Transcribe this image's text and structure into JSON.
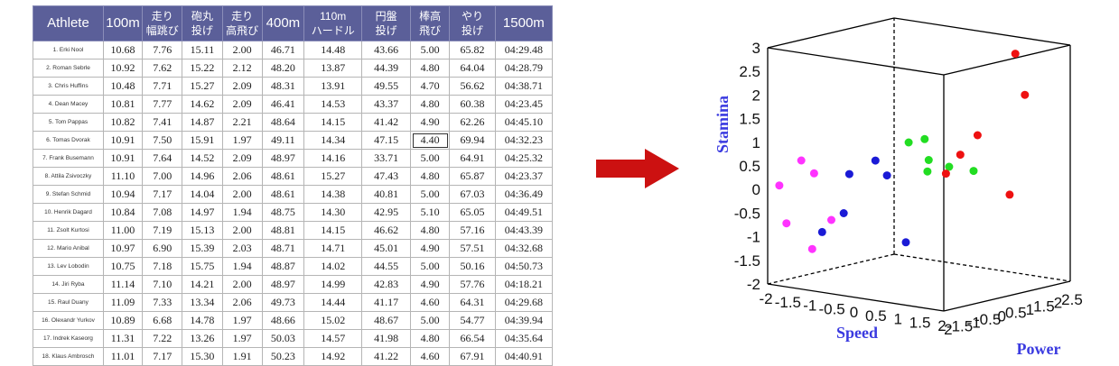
{
  "table": {
    "headers": [
      [
        "Athlete"
      ],
      [
        "100m"
      ],
      [
        "走り",
        "幅跳び"
      ],
      [
        "砲丸",
        "投げ"
      ],
      [
        "走り",
        "高飛び"
      ],
      [
        "400m"
      ],
      [
        "110m",
        "ハードル"
      ],
      [
        "円盤",
        "投げ"
      ],
      [
        "棒高",
        "飛び"
      ],
      [
        "やり",
        "投げ"
      ],
      [
        "1500m"
      ]
    ],
    "rows": [
      [
        "1. Erki Nool",
        "10.68",
        "7.76",
        "15.11",
        "2.00",
        "46.71",
        "14.48",
        "43.66",
        "5.00",
        "65.82",
        "04:29.48"
      ],
      [
        "2. Roman Sebrle",
        "10.92",
        "7.62",
        "15.22",
        "2.12",
        "48.20",
        "13.87",
        "44.39",
        "4.80",
        "64.04",
        "04:28.79"
      ],
      [
        "3. Chris Huffins",
        "10.48",
        "7.71",
        "15.27",
        "2.09",
        "48.31",
        "13.91",
        "49.55",
        "4.70",
        "56.62",
        "04:38.71"
      ],
      [
        "4. Dean Macey",
        "10.81",
        "7.77",
        "14.62",
        "2.09",
        "46.41",
        "14.53",
        "43.37",
        "4.80",
        "60.38",
        "04:23.45"
      ],
      [
        "5. Tom Pappas",
        "10.82",
        "7.41",
        "14.87",
        "2.21",
        "48.64",
        "14.15",
        "41.42",
        "4.90",
        "62.26",
        "04:45.10"
      ],
      [
        "6. Tomas Dvorak",
        "10.91",
        "7.50",
        "15.91",
        "1.97",
        "49.11",
        "14.34",
        "47.15",
        "4.40",
        "69.94",
        "04:32.23"
      ],
      [
        "7. Frank Busemann",
        "10.91",
        "7.64",
        "14.52",
        "2.09",
        "48.97",
        "14.16",
        "33.71",
        "5.00",
        "64.91",
        "04:25.32"
      ],
      [
        "8. Attila Zsivoczky",
        "11.10",
        "7.00",
        "14.96",
        "2.06",
        "48.61",
        "15.27",
        "47.43",
        "4.80",
        "65.87",
        "04:23.37"
      ],
      [
        "9. Stefan Schmid",
        "10.94",
        "7.17",
        "14.04",
        "2.00",
        "48.61",
        "14.38",
        "40.81",
        "5.00",
        "67.03",
        "04:36.49"
      ],
      [
        "10. Henrik Dagard",
        "10.84",
        "7.08",
        "14.97",
        "1.94",
        "48.75",
        "14.30",
        "42.95",
        "5.10",
        "65.05",
        "04:49.51"
      ],
      [
        "11. Zsolt Kurtosi",
        "11.00",
        "7.19",
        "15.13",
        "2.00",
        "48.81",
        "14.15",
        "46.62",
        "4.80",
        "57.16",
        "04:43.39"
      ],
      [
        "12. Mario Anibal",
        "10.97",
        "6.90",
        "15.39",
        "2.03",
        "48.71",
        "14.71",
        "45.01",
        "4.90",
        "57.51",
        "04:32.68"
      ],
      [
        "13. Lev Lobodin",
        "10.75",
        "7.18",
        "15.75",
        "1.94",
        "48.87",
        "14.02",
        "44.55",
        "5.00",
        "50.16",
        "04:50.73"
      ],
      [
        "14. Jiri Ryba",
        "11.14",
        "7.10",
        "14.21",
        "2.00",
        "48.97",
        "14.99",
        "42.83",
        "4.90",
        "57.76",
        "04:18.21"
      ],
      [
        "15. Raul Duany",
        "11.09",
        "7.33",
        "13.34",
        "2.06",
        "49.73",
        "14.44",
        "41.17",
        "4.60",
        "64.31",
        "04:29.68"
      ],
      [
        "16. Olexandr Yurkov",
        "10.89",
        "6.68",
        "14.78",
        "1.97",
        "48.66",
        "15.02",
        "48.67",
        "5.00",
        "54.77",
        "04:39.94"
      ],
      [
        "17. Indrek Kaseorg",
        "11.31",
        "7.22",
        "13.26",
        "1.97",
        "50.03",
        "14.57",
        "41.98",
        "4.80",
        "66.54",
        "04:35.64"
      ],
      [
        "18. Klaus Ambrosch",
        "11.01",
        "7.17",
        "15.30",
        "1.91",
        "50.23",
        "14.92",
        "41.22",
        "4.60",
        "67.91",
        "04:40.91"
      ]
    ],
    "highlight": {
      "row": 5,
      "col": 8
    }
  },
  "arrow_color": "#cc1111",
  "chart_data": {
    "type": "scatter3d",
    "x_label": "Speed",
    "y_label": "Power",
    "z_label": "Stamina",
    "x_range": [
      -2,
      2
    ],
    "y_range": [
      -2,
      2.5
    ],
    "z_range": [
      -2,
      3
    ],
    "x_ticks": [
      "-2",
      "-1.5",
      "-1",
      "-0.5",
      "0",
      "0.5",
      "1",
      "1.5",
      "2"
    ],
    "y_ticks": [
      "-2",
      "-1.5",
      "-1",
      "-0.5",
      "0",
      "0.5",
      "1",
      "1.5",
      "2",
      "2.5"
    ],
    "z_ticks": [
      "-2",
      "-1.5",
      "-1",
      "-0.5",
      "0",
      "0.5",
      "1",
      "1.5",
      "2",
      "2.5",
      "3"
    ],
    "series": [
      {
        "color": "#ff33ff",
        "points": [
          [
            -1.8,
            -1.9,
            0.1
          ],
          [
            -1.7,
            -1.8,
            -0.7
          ],
          [
            -1.3,
            -1.9,
            0.7
          ],
          [
            -1.2,
            -1.6,
            0.4
          ],
          [
            -1.0,
            -1.3,
            -0.6
          ],
          [
            -1.5,
            -1.2,
            -1.3
          ]
        ]
      },
      {
        "color": "#1a1ad6",
        "points": [
          [
            -0.4,
            -1.6,
            0.5
          ],
          [
            0.0,
            -1.3,
            0.8
          ],
          [
            0.2,
            -1.2,
            0.5
          ],
          [
            -0.7,
            -2.1,
            -0.7
          ],
          [
            -0.4,
            -1.8,
            -0.3
          ],
          [
            0.5,
            -1.0,
            -0.9
          ]
        ]
      },
      {
        "color": "#22dd22",
        "points": [
          [
            0.5,
            -0.9,
            1.2
          ],
          [
            0.8,
            -0.8,
            1.3
          ],
          [
            0.7,
            -0.5,
            0.8
          ],
          [
            0.8,
            -0.7,
            0.6
          ],
          [
            1.1,
            -0.4,
            0.7
          ],
          [
            1.4,
            0.0,
            0.6
          ]
        ]
      },
      {
        "color": "#ee1111",
        "points": [
          [
            0.9,
            -0.2,
            0.5
          ],
          [
            1.1,
            0.0,
            0.9
          ],
          [
            1.3,
            0.3,
            1.3
          ],
          [
            1.2,
            1.8,
            2.8
          ],
          [
            1.8,
            1.2,
            2.1
          ],
          [
            1.9,
            0.5,
            0.1
          ]
        ]
      }
    ]
  }
}
